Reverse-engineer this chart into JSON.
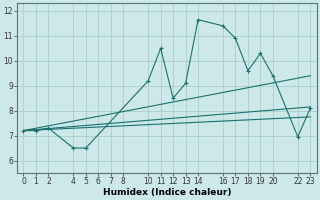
{
  "xlabel": "Humidex (Indice chaleur)",
  "bg_color": "#cce8e8",
  "grid_color": "#aacccc",
  "line_color": "#1a7070",
  "xlim": [
    -0.5,
    23.5
  ],
  "ylim": [
    5.5,
    12.3
  ],
  "xticks": [
    0,
    1,
    2,
    4,
    5,
    6,
    7,
    8,
    10,
    11,
    12,
    13,
    14,
    16,
    17,
    18,
    19,
    20,
    22,
    23
  ],
  "yticks": [
    6,
    7,
    8,
    9,
    10,
    11,
    12
  ],
  "series": [
    {
      "x": [
        0,
        1,
        2,
        4,
        5,
        10,
        11,
        12,
        13,
        14,
        16,
        17,
        18,
        19,
        20,
        22,
        23
      ],
      "y": [
        7.2,
        7.2,
        7.3,
        6.5,
        6.5,
        9.2,
        10.5,
        8.5,
        9.1,
        11.65,
        11.4,
        10.9,
        9.6,
        10.3,
        9.4,
        6.95,
        8.1
      ],
      "marker": true
    },
    {
      "x": [
        0,
        23
      ],
      "y": [
        7.2,
        7.75
      ],
      "marker": false
    },
    {
      "x": [
        0,
        23
      ],
      "y": [
        7.2,
        8.15
      ],
      "marker": false
    },
    {
      "x": [
        0,
        23
      ],
      "y": [
        7.2,
        9.4
      ],
      "marker": false
    }
  ],
  "tick_fontsize": 5.5,
  "xlabel_fontsize": 6.5
}
